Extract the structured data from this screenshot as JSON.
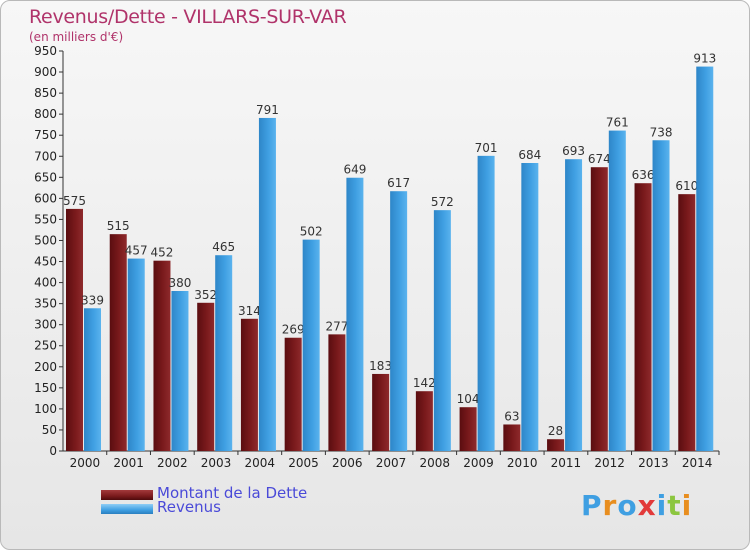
{
  "header": {
    "title": "Revenus/Dette - VILLARS-SUR-VAR",
    "subtitle": "(en milliers d'€)"
  },
  "colors": {
    "series_dette": "#7a1a1c",
    "series_revenus": "#3f9fe2",
    "title": "#b0336a",
    "legend_text": "#4a4ad8"
  },
  "logo": {
    "text": "Proxiti",
    "letters": [
      "P",
      "r",
      "o",
      "x",
      "i",
      "t",
      "i"
    ],
    "letter_colors": [
      "#3f9fe2",
      "#e88e1f",
      "#3f9fe2",
      "#e23a3a",
      "#3f9fe2",
      "#8cc63f",
      "#e88e1f"
    ]
  },
  "chart_data": {
    "type": "bar",
    "categories": [
      "2000",
      "2001",
      "2002",
      "2003",
      "2004",
      "2005",
      "2006",
      "2007",
      "2008",
      "2009",
      "2010",
      "2011",
      "2012",
      "2013",
      "2014"
    ],
    "series": [
      {
        "name": "Montant de la Dette",
        "values": [
          575,
          515,
          452,
          352,
          314,
          269,
          277,
          183,
          142,
          104,
          63,
          28,
          674,
          636,
          610
        ]
      },
      {
        "name": "Revenus",
        "values": [
          339,
          457,
          380,
          465,
          791,
          502,
          649,
          617,
          572,
          701,
          684,
          693,
          761,
          738,
          913
        ]
      }
    ],
    "ylim": [
      0,
      950
    ],
    "yticks": [
      0,
      50,
      100,
      150,
      200,
      250,
      300,
      350,
      400,
      450,
      500,
      550,
      600,
      650,
      700,
      750,
      800,
      850,
      900,
      950
    ],
    "grid": false,
    "legend_position": "bottom-left"
  }
}
